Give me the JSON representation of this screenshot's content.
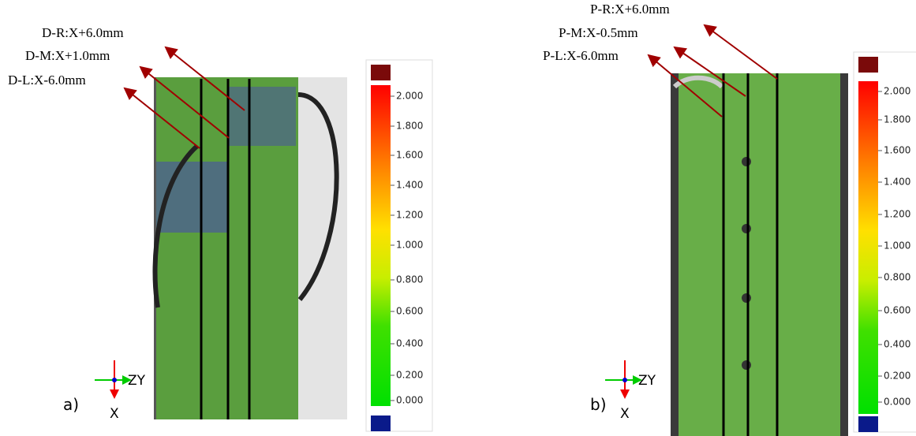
{
  "panels": [
    {
      "label": "a)",
      "annotations": [
        "D-R:X+6.0mm",
        "D-M:X+1.0mm",
        "D-L:X-6.0mm"
      ],
      "colorbar": [
        "2.000",
        "1.800",
        "1.600",
        "1.400",
        "1.200",
        "1.000",
        "0.800",
        "0.600",
        "0.400",
        "0.200",
        "0.000"
      ],
      "axes": {
        "h": "ZY",
        "v": "X"
      }
    },
    {
      "label": "b)",
      "annotations": [
        "P-R:X+6.0mm",
        "P-M:X-0.5mm",
        "P-L:X-6.0mm"
      ],
      "colorbar": [
        "2.000",
        "1.800",
        "1.600",
        "1.400",
        "1.200",
        "1.000",
        "0.800",
        "0.600",
        "0.400",
        "0.200",
        "0.000"
      ],
      "axes": {
        "h": "ZY",
        "v": "X"
      }
    }
  ]
}
